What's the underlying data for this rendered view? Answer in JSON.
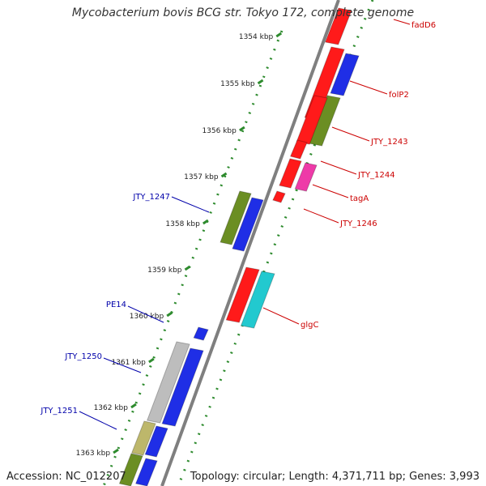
{
  "map": {
    "title": "Mycobacterium bovis BCG str. Tokyo 172, complete genome",
    "accession": "Accession: NC_012207",
    "topology": "Topology: circular; Length: 4,371,711 bp; Genes: 3,993",
    "colors": {
      "backbone": "#7f7f7f",
      "ticks": "#2e8b2e",
      "red": "#ff1a1a",
      "blue": "#1f2ee6",
      "olive": "#6b8e23",
      "khaki": "#bdb76b",
      "magenta": "#ee3aa8",
      "cyan": "#22c9cf",
      "gray": "#bdbdbd",
      "label_red": "#cc0000",
      "label_blue": "#0000aa"
    },
    "kbp_labels": [
      "1354 kbp",
      "1355 kbp",
      "1356 kbp",
      "1357 kbp",
      "1358 kbp",
      "1359 kbp",
      "1360 kbp",
      "1361 kbp",
      "1362 kbp",
      "1363 kbp"
    ],
    "gene_labels_right": [
      "fadD6",
      "folP2",
      "JTY_1243",
      "JTY_1244",
      "tagA",
      "JTY_1246",
      "glgC"
    ],
    "gene_labels_left": [
      "JTY_1247",
      "PE14",
      "JTY_1250",
      "JTY_1251"
    ]
  }
}
